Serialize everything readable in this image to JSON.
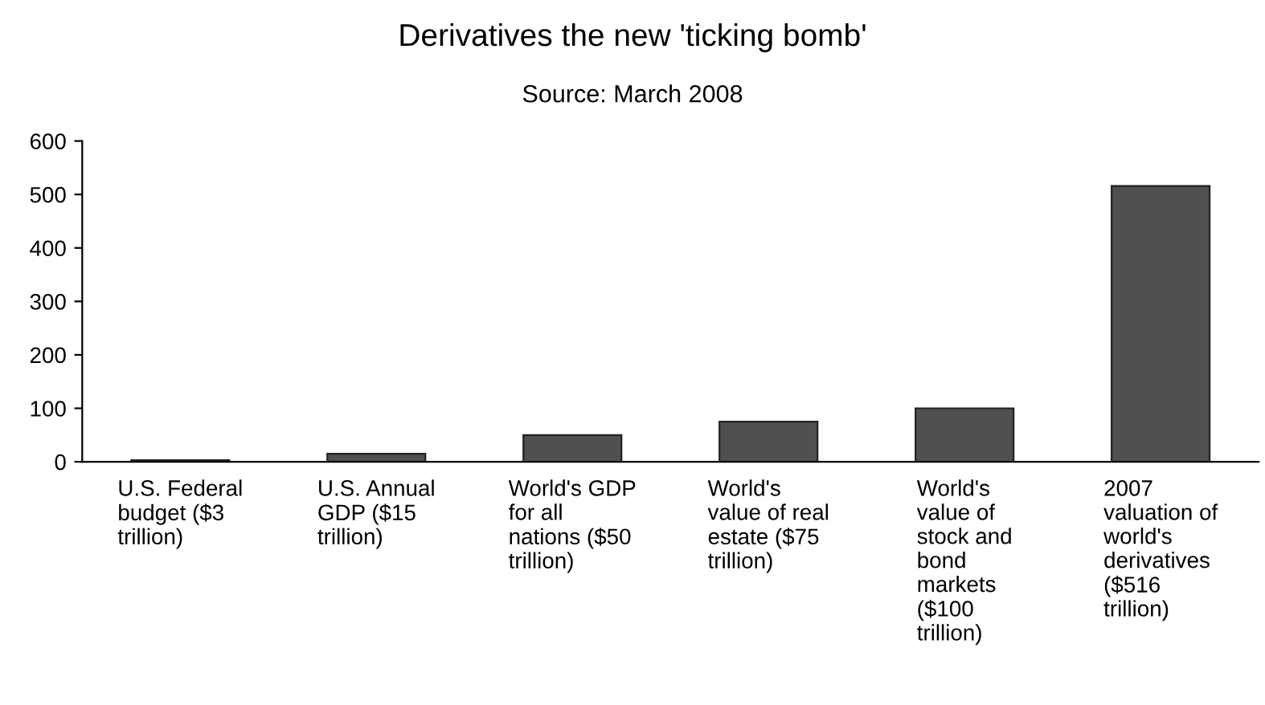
{
  "chart_data": {
    "type": "bar",
    "title": "Derivatives the new 'ticking bomb'",
    "subtitle": "Source: March 2008",
    "categories": [
      "U.S. Federal\nbudget ($3\ntrillion)",
      "U.S. Annual\nGDP ($15\ntrillion)",
      "World's GDP\nfor all\nnations ($50\ntrillion)",
      "World's\nvalue of real\nestate ($75\ntrillion)",
      "World's\nvalue of\nstock and\nbond\nmarkets\n($100\ntrillion)",
      "2007\nvaluation of\nworld's\nderivatives\n($516\ntrillion)"
    ],
    "values": [
      3,
      15,
      50,
      75,
      100,
      516
    ],
    "color": "#505050",
    "ylim": [
      0,
      600
    ],
    "yticks": [
      0,
      100,
      200,
      300,
      400,
      500,
      600
    ],
    "grid": false
  }
}
